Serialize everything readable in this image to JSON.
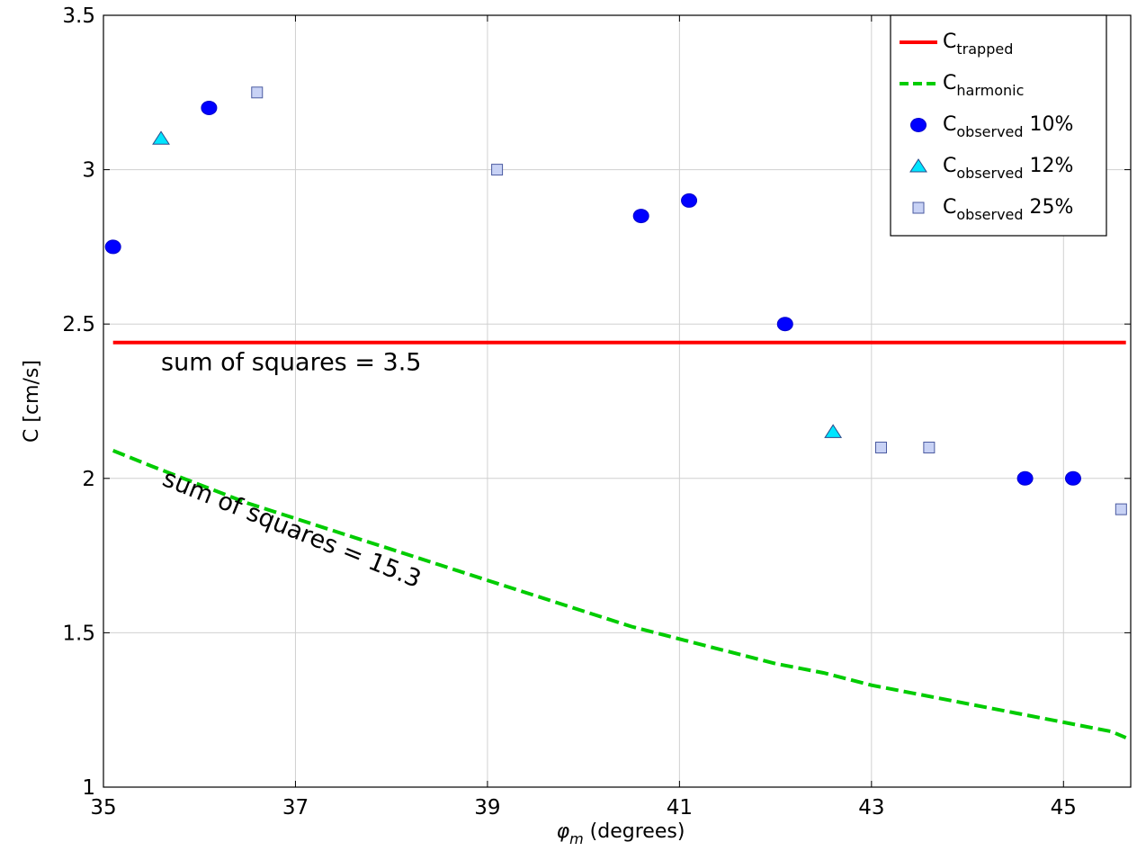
{
  "chart_data": {
    "type": "scatter",
    "xlabel_symbol": "φ",
    "xlabel_symbol_sub": "m",
    "xlabel_text": " (degrees)",
    "ylabel": "C [cm/s]",
    "xlim": [
      35,
      45.7
    ],
    "ylim": [
      1,
      3.5
    ],
    "xticks": [
      "35",
      "37",
      "39",
      "41",
      "43",
      "45"
    ],
    "yticks": [
      "1",
      "1.5",
      "2",
      "2.5",
      "3",
      "3.5"
    ],
    "grid": true,
    "legend_position": "top-right",
    "series": [
      {
        "name": "C_trapped",
        "name_base": "C",
        "name_sub": "trapped",
        "name_suffix": "",
        "kind": "line",
        "style": "solid",
        "color": "#ff0000",
        "x": [
          35.1,
          45.65
        ],
        "y": [
          2.44,
          2.44
        ]
      },
      {
        "name": "C_harmonic",
        "name_base": "C",
        "name_sub": "harmonic",
        "name_suffix": "",
        "kind": "line",
        "style": "dashed",
        "color": "#00cc00",
        "x": [
          35.1,
          35.5,
          36.0,
          36.5,
          37.0,
          37.5,
          38.0,
          38.5,
          39.0,
          39.5,
          40.0,
          40.5,
          41.0,
          41.5,
          42.0,
          42.5,
          43.0,
          43.5,
          44.0,
          44.5,
          45.0,
          45.5,
          45.65
        ],
        "y": [
          2.09,
          2.04,
          1.98,
          1.92,
          1.87,
          1.82,
          1.77,
          1.72,
          1.67,
          1.62,
          1.57,
          1.52,
          1.48,
          1.44,
          1.4,
          1.37,
          1.33,
          1.3,
          1.27,
          1.24,
          1.21,
          1.18,
          1.16
        ]
      },
      {
        "name": "C_observed 10%",
        "name_base": "C",
        "name_sub": "observed",
        "name_suffix": " 10%",
        "kind": "scatter",
        "marker": "circle",
        "color": "#0000ff",
        "x": [
          35.1,
          36.1,
          40.6,
          41.1,
          42.1,
          44.6,
          45.1
        ],
        "y": [
          2.75,
          3.2,
          2.85,
          2.9,
          2.5,
          2.0,
          2.0
        ]
      },
      {
        "name": "C_observed 12%",
        "name_base": "C",
        "name_sub": "observed",
        "name_suffix": " 12%",
        "kind": "scatter",
        "marker": "triangle",
        "color": "#00e5ff",
        "x": [
          35.6,
          42.6
        ],
        "y": [
          3.1,
          2.15
        ]
      },
      {
        "name": "C_observed 25%",
        "name_base": "C",
        "name_sub": "observed",
        "name_suffix": " 25%",
        "kind": "scatter",
        "marker": "square",
        "color": "#c8d2f5",
        "x": [
          36.6,
          39.1,
          43.1,
          43.6,
          45.6
        ],
        "y": [
          3.25,
          3.0,
          2.1,
          2.1,
          1.9
        ]
      }
    ],
    "annotations": [
      {
        "text": "sum of squares = 3.5",
        "x": 35.6,
        "y": 2.35,
        "angle": 0
      },
      {
        "text": "sum of squares = 15.3",
        "x": 35.6,
        "y": 1.98,
        "angle": 22
      }
    ]
  }
}
